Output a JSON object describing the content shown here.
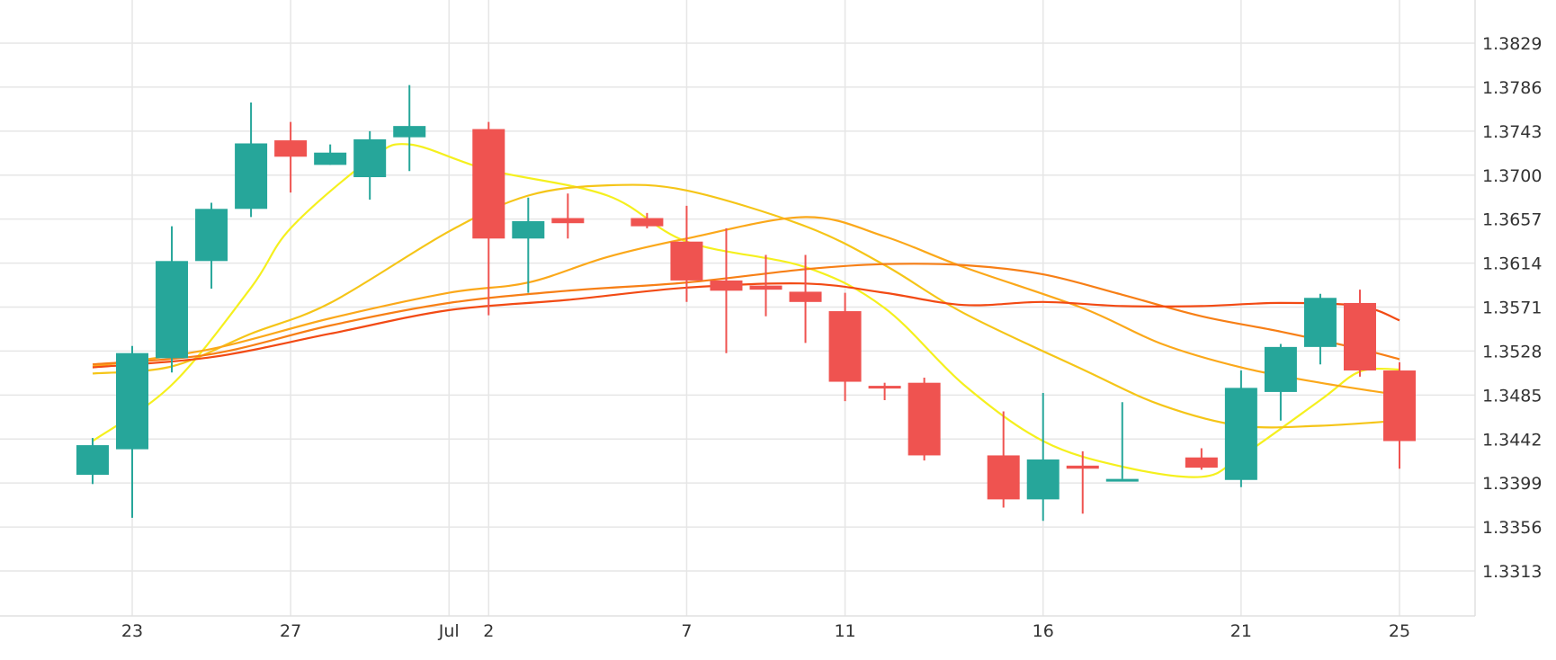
{
  "chart_data": {
    "type": "candlestick",
    "title": "",
    "xlabel": "",
    "ylabel": "",
    "y_ticks": [
      "1.3313",
      "1.3356",
      "1.3399",
      "1.3442",
      "1.3485",
      "1.3528",
      "1.3571",
      "1.3614",
      "1.3657",
      "1.3700",
      "1.3743",
      "1.3786",
      "1.3829"
    ],
    "x_ticks": [
      {
        "label": "23",
        "date": "2020-06-23"
      },
      {
        "label": "27",
        "date": "2020-06-27"
      },
      {
        "label": "Jul",
        "date": "2020-07-01"
      },
      {
        "label": "2",
        "date": "2020-07-02"
      },
      {
        "label": "7",
        "date": "2020-07-07"
      },
      {
        "label": "11",
        "date": "2020-07-11"
      },
      {
        "label": "16",
        "date": "2020-07-16"
      },
      {
        "label": "21",
        "date": "2020-07-21"
      },
      {
        "label": "25",
        "date": "2020-07-25"
      }
    ],
    "x_range": [
      "2020-06-20",
      "2020-07-27"
    ],
    "y_range": [
      1.3269,
      1.3868
    ],
    "y_axis_position": "right",
    "grid": true,
    "colors": {
      "up": "#26a69a",
      "down": "#ef5350",
      "grid": "#e6e6e6"
    },
    "candles": [
      {
        "date": "2020-06-22",
        "open": 1.3407,
        "high": 1.3443,
        "low": 1.3398,
        "close": 1.3436
      },
      {
        "date": "2020-06-23",
        "open": 1.3432,
        "high": 1.3533,
        "low": 1.3365,
        "close": 1.3526
      },
      {
        "date": "2020-06-24",
        "open": 1.3521,
        "high": 1.365,
        "low": 1.3507,
        "close": 1.3616
      },
      {
        "date": "2020-06-25",
        "open": 1.3616,
        "high": 1.3673,
        "low": 1.3589,
        "close": 1.3667
      },
      {
        "date": "2020-06-26",
        "open": 1.3667,
        "high": 1.3771,
        "low": 1.3659,
        "close": 1.3731
      },
      {
        "date": "2020-06-27",
        "open": 1.3734,
        "high": 1.3752,
        "low": 1.3683,
        "close": 1.3718
      },
      {
        "date": "2020-06-28",
        "open": 1.371,
        "high": 1.373,
        "low": 1.371,
        "close": 1.3722
      },
      {
        "date": "2020-06-29",
        "open": 1.3698,
        "high": 1.3743,
        "low": 1.3676,
        "close": 1.3735
      },
      {
        "date": "2020-06-30",
        "open": 1.3737,
        "high": 1.3788,
        "low": 1.3704,
        "close": 1.3748
      },
      {
        "date": "2020-07-02",
        "open": 1.3745,
        "high": 1.3752,
        "low": 1.3563,
        "close": 1.3638
      },
      {
        "date": "2020-07-03",
        "open": 1.3638,
        "high": 1.3678,
        "low": 1.3585,
        "close": 1.3655
      },
      {
        "date": "2020-07-04",
        "open": 1.3658,
        "high": 1.3682,
        "low": 1.3638,
        "close": 1.3653
      },
      {
        "date": "2020-07-06",
        "open": 1.3658,
        "high": 1.3663,
        "low": 1.3648,
        "close": 1.365
      },
      {
        "date": "2020-07-07",
        "open": 1.3635,
        "high": 1.367,
        "low": 1.3576,
        "close": 1.3597
      },
      {
        "date": "2020-07-08",
        "open": 1.3597,
        "high": 1.3648,
        "low": 1.3526,
        "close": 1.3587
      },
      {
        "date": "2020-07-09",
        "open": 1.3592,
        "high": 1.3622,
        "low": 1.3562,
        "close": 1.3588
      },
      {
        "date": "2020-07-10",
        "open": 1.3586,
        "high": 1.3622,
        "low": 1.3536,
        "close": 1.3576
      },
      {
        "date": "2020-07-11",
        "open": 1.3567,
        "high": 1.3585,
        "low": 1.3479,
        "close": 1.3498
      },
      {
        "date": "2020-07-12",
        "open": 1.3494,
        "high": 1.3497,
        "low": 1.348,
        "close": 1.3493
      },
      {
        "date": "2020-07-13",
        "open": 1.3497,
        "high": 1.3502,
        "low": 1.3421,
        "close": 1.3426
      },
      {
        "date": "2020-07-15",
        "open": 1.3426,
        "high": 1.3469,
        "low": 1.3375,
        "close": 1.3383
      },
      {
        "date": "2020-07-16",
        "open": 1.3383,
        "high": 1.3487,
        "low": 1.3362,
        "close": 1.3422
      },
      {
        "date": "2020-07-17",
        "open": 1.3416,
        "high": 1.343,
        "low": 1.3369,
        "close": 1.3413
      },
      {
        "date": "2020-07-18",
        "open": 1.3403,
        "high": 1.3478,
        "low": 1.3403,
        "close": 1.3403
      },
      {
        "date": "2020-07-20",
        "open": 1.3424,
        "high": 1.3433,
        "low": 1.3412,
        "close": 1.3414
      },
      {
        "date": "2020-07-21",
        "open": 1.3402,
        "high": 1.3509,
        "low": 1.3395,
        "close": 1.3492
      },
      {
        "date": "2020-07-22",
        "open": 1.3488,
        "high": 1.3535,
        "low": 1.346,
        "close": 1.3532
      },
      {
        "date": "2020-07-23",
        "open": 1.3532,
        "high": 1.3584,
        "low": 1.3515,
        "close": 1.358
      },
      {
        "date": "2020-07-24",
        "open": 1.3575,
        "high": 1.3588,
        "low": 1.3503,
        "close": 1.3509
      },
      {
        "date": "2020-07-25",
        "open": 1.3509,
        "high": 1.3517,
        "low": 1.3413,
        "close": 1.344
      }
    ],
    "series": [
      {
        "type": "line",
        "color": "#f5f01e",
        "points": [
          [
            "2020-06-22",
            1.344
          ],
          [
            "2020-06-24",
            1.3495
          ],
          [
            "2020-06-26",
            1.359
          ],
          [
            "2020-06-27",
            1.3648
          ],
          [
            "2020-06-29",
            1.3715
          ],
          [
            "2020-06-30",
            1.373
          ],
          [
            "2020-07-02",
            1.3705
          ],
          [
            "2020-07-05",
            1.368
          ],
          [
            "2020-07-07",
            1.3635
          ],
          [
            "2020-07-10",
            1.361
          ],
          [
            "2020-07-12",
            1.357
          ],
          [
            "2020-07-14",
            1.3495
          ],
          [
            "2020-07-16",
            1.344
          ],
          [
            "2020-07-18",
            1.3415
          ],
          [
            "2020-07-20",
            1.3405
          ],
          [
            "2020-07-21",
            1.3425
          ],
          [
            "2020-07-23",
            1.348
          ],
          [
            "2020-07-24",
            1.3508
          ],
          [
            "2020-07-25",
            1.351
          ]
        ]
      },
      {
        "type": "line",
        "color": "#f5c518",
        "points": [
          [
            "2020-06-22",
            1.3506
          ],
          [
            "2020-06-24",
            1.3513
          ],
          [
            "2020-06-26",
            1.3545
          ],
          [
            "2020-06-28",
            1.3575
          ],
          [
            "2020-07-01",
            1.3645
          ],
          [
            "2020-07-03",
            1.368
          ],
          [
            "2020-07-05",
            1.369
          ],
          [
            "2020-07-07",
            1.3685
          ],
          [
            "2020-07-10",
            1.365
          ],
          [
            "2020-07-12",
            1.3612
          ],
          [
            "2020-07-14",
            1.3565
          ],
          [
            "2020-07-17",
            1.351
          ],
          [
            "2020-07-19",
            1.3475
          ],
          [
            "2020-07-21",
            1.3455
          ],
          [
            "2020-07-23",
            1.3455
          ],
          [
            "2020-07-25",
            1.346
          ]
        ]
      },
      {
        "type": "line",
        "color": "#fba81a",
        "points": [
          [
            "2020-06-22",
            1.3513
          ],
          [
            "2020-06-25",
            1.353
          ],
          [
            "2020-06-28",
            1.356
          ],
          [
            "2020-07-01",
            1.3585
          ],
          [
            "2020-07-03",
            1.3595
          ],
          [
            "2020-07-05",
            1.362
          ],
          [
            "2020-07-07",
            1.3638
          ],
          [
            "2020-07-10",
            1.3659
          ],
          [
            "2020-07-12",
            1.364
          ],
          [
            "2020-07-14",
            1.361
          ],
          [
            "2020-07-17",
            1.357
          ],
          [
            "2020-07-19",
            1.3535
          ],
          [
            "2020-07-21",
            1.3512
          ],
          [
            "2020-07-23",
            1.3497
          ],
          [
            "2020-07-25",
            1.3485
          ]
        ]
      },
      {
        "type": "line",
        "color": "#f77f16",
        "points": [
          [
            "2020-06-22",
            1.3515
          ],
          [
            "2020-06-25",
            1.3525
          ],
          [
            "2020-06-28",
            1.3553
          ],
          [
            "2020-07-01",
            1.3575
          ],
          [
            "2020-07-04",
            1.3587
          ],
          [
            "2020-07-07",
            1.3595
          ],
          [
            "2020-07-10",
            1.3608
          ],
          [
            "2020-07-12",
            1.3613
          ],
          [
            "2020-07-14",
            1.3612
          ],
          [
            "2020-07-16",
            1.3603
          ],
          [
            "2020-07-18",
            1.3583
          ],
          [
            "2020-07-20",
            1.3562
          ],
          [
            "2020-07-22",
            1.3547
          ],
          [
            "2020-07-24",
            1.353
          ],
          [
            "2020-07-25",
            1.352
          ]
        ]
      },
      {
        "type": "line",
        "color": "#f24a14",
        "points": [
          [
            "2020-06-22",
            1.3512
          ],
          [
            "2020-06-25",
            1.3522
          ],
          [
            "2020-06-28",
            1.3545
          ],
          [
            "2020-07-01",
            1.3568
          ],
          [
            "2020-07-04",
            1.3578
          ],
          [
            "2020-07-07",
            1.359
          ],
          [
            "2020-07-10",
            1.3594
          ],
          [
            "2020-07-12",
            1.3585
          ],
          [
            "2020-07-14",
            1.3573
          ],
          [
            "2020-07-16",
            1.3576
          ],
          [
            "2020-07-18",
            1.3572
          ],
          [
            "2020-07-20",
            1.3572
          ],
          [
            "2020-07-22",
            1.3575
          ],
          [
            "2020-07-24",
            1.3572
          ],
          [
            "2020-07-25",
            1.3558
          ]
        ]
      }
    ]
  }
}
